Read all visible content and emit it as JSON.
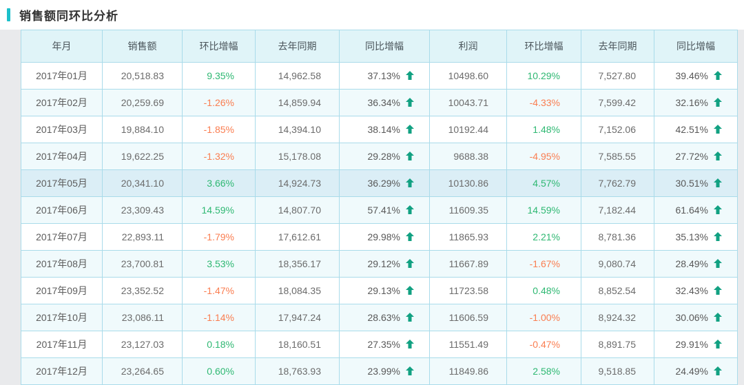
{
  "page": {
    "title": "销售额同环比分析"
  },
  "colors": {
    "accent": "#1bc0ca",
    "header_bg": "#e0f4f8",
    "cell_border": "#a9dbea",
    "row_alt_bg": "#f0fafc",
    "row_highlight_bg": "#dbeef6",
    "positive_text": "#2eb872",
    "negative_text": "#fa7d50",
    "arrow_green": "#12a182"
  },
  "icons": {
    "up_arrow": "solid up arrow"
  },
  "table": {
    "headers": [
      "年月",
      "销售额",
      "环比增幅",
      "去年同期",
      "同比增幅",
      "利润",
      "环比增幅",
      "去年同期",
      "同比增幅"
    ],
    "highlighted_row_index": 4,
    "rows": [
      {
        "month": "2017年01月",
        "sales": "20,518.83",
        "sales_mom": "9.35%",
        "sales_last_year": "14,962.58",
        "sales_yoy": "37.13%",
        "profit": "10498.60",
        "profit_mom": "10.29%",
        "profit_last_year": "7,527.80",
        "profit_yoy": "39.46%"
      },
      {
        "month": "2017年02月",
        "sales": "20,259.69",
        "sales_mom": "-1.26%",
        "sales_last_year": "14,859.94",
        "sales_yoy": "36.34%",
        "profit": "10043.71",
        "profit_mom": "-4.33%",
        "profit_last_year": "7,599.42",
        "profit_yoy": "32.16%"
      },
      {
        "month": "2017年03月",
        "sales": "19,884.10",
        "sales_mom": "-1.85%",
        "sales_last_year": "14,394.10",
        "sales_yoy": "38.14%",
        "profit": "10192.44",
        "profit_mom": "1.48%",
        "profit_last_year": "7,152.06",
        "profit_yoy": "42.51%"
      },
      {
        "month": "2017年04月",
        "sales": "19,622.25",
        "sales_mom": "-1.32%",
        "sales_last_year": "15,178.08",
        "sales_yoy": "29.28%",
        "profit": "9688.38",
        "profit_mom": "-4.95%",
        "profit_last_year": "7,585.55",
        "profit_yoy": "27.72%"
      },
      {
        "month": "2017年05月",
        "sales": "20,341.10",
        "sales_mom": "3.66%",
        "sales_last_year": "14,924.73",
        "sales_yoy": "36.29%",
        "profit": "10130.86",
        "profit_mom": "4.57%",
        "profit_last_year": "7,762.79",
        "profit_yoy": "30.51%"
      },
      {
        "month": "2017年06月",
        "sales": "23,309.43",
        "sales_mom": "14.59%",
        "sales_last_year": "14,807.70",
        "sales_yoy": "57.41%",
        "profit": "11609.35",
        "profit_mom": "14.59%",
        "profit_last_year": "7,182.44",
        "profit_yoy": "61.64%"
      },
      {
        "month": "2017年07月",
        "sales": "22,893.11",
        "sales_mom": "-1.79%",
        "sales_last_year": "17,612.61",
        "sales_yoy": "29.98%",
        "profit": "11865.93",
        "profit_mom": "2.21%",
        "profit_last_year": "8,781.36",
        "profit_yoy": "35.13%"
      },
      {
        "month": "2017年08月",
        "sales": "23,700.81",
        "sales_mom": "3.53%",
        "sales_last_year": "18,356.17",
        "sales_yoy": "29.12%",
        "profit": "11667.89",
        "profit_mom": "-1.67%",
        "profit_last_year": "9,080.74",
        "profit_yoy": "28.49%"
      },
      {
        "month": "2017年09月",
        "sales": "23,352.52",
        "sales_mom": "-1.47%",
        "sales_last_year": "18,084.35",
        "sales_yoy": "29.13%",
        "profit": "11723.58",
        "profit_mom": "0.48%",
        "profit_last_year": "8,852.54",
        "profit_yoy": "32.43%"
      },
      {
        "month": "2017年10月",
        "sales": "23,086.11",
        "sales_mom": "-1.14%",
        "sales_last_year": "17,947.24",
        "sales_yoy": "28.63%",
        "profit": "11606.59",
        "profit_mom": "-1.00%",
        "profit_last_year": "8,924.32",
        "profit_yoy": "30.06%"
      },
      {
        "month": "2017年11月",
        "sales": "23,127.03",
        "sales_mom": "0.18%",
        "sales_last_year": "18,160.51",
        "sales_yoy": "27.35%",
        "profit": "11551.49",
        "profit_mom": "-0.47%",
        "profit_last_year": "8,891.75",
        "profit_yoy": "29.91%"
      },
      {
        "month": "2017年12月",
        "sales": "23,264.65",
        "sales_mom": "0.60%",
        "sales_last_year": "18,763.93",
        "sales_yoy": "23.99%",
        "profit": "11849.86",
        "profit_mom": "2.58%",
        "profit_last_year": "9,518.85",
        "profit_yoy": "24.49%"
      }
    ]
  }
}
